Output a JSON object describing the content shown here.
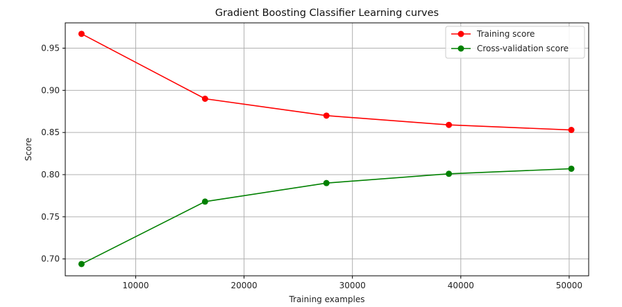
{
  "chart_data": {
    "type": "line",
    "title": "Gradient Boosting Classifier Learning curves",
    "xlabel": "Training examples",
    "ylabel": "Score",
    "xlim": [
      3500,
      51800
    ],
    "ylim": [
      0.68,
      0.98
    ],
    "xticks": [
      10000,
      20000,
      30000,
      40000,
      50000
    ],
    "yticks": [
      0.7,
      0.75,
      0.8,
      0.85,
      0.9,
      0.95
    ],
    "xtick_labels": [
      "10000",
      "20000",
      "30000",
      "40000",
      "50000"
    ],
    "ytick_labels": [
      "0.70",
      "0.75",
      "0.80",
      "0.85",
      "0.90",
      "0.95"
    ],
    "grid": true,
    "legend": "top-right",
    "x": [
      5000,
      16400,
      27600,
      38900,
      50200
    ],
    "series": [
      {
        "name": "Training score",
        "color": "#ff0000",
        "values": [
          0.967,
          0.89,
          0.87,
          0.859,
          0.853
        ]
      },
      {
        "name": "Cross-validation score",
        "color": "#008000",
        "values": [
          0.694,
          0.768,
          0.79,
          0.801,
          0.807
        ]
      }
    ]
  }
}
